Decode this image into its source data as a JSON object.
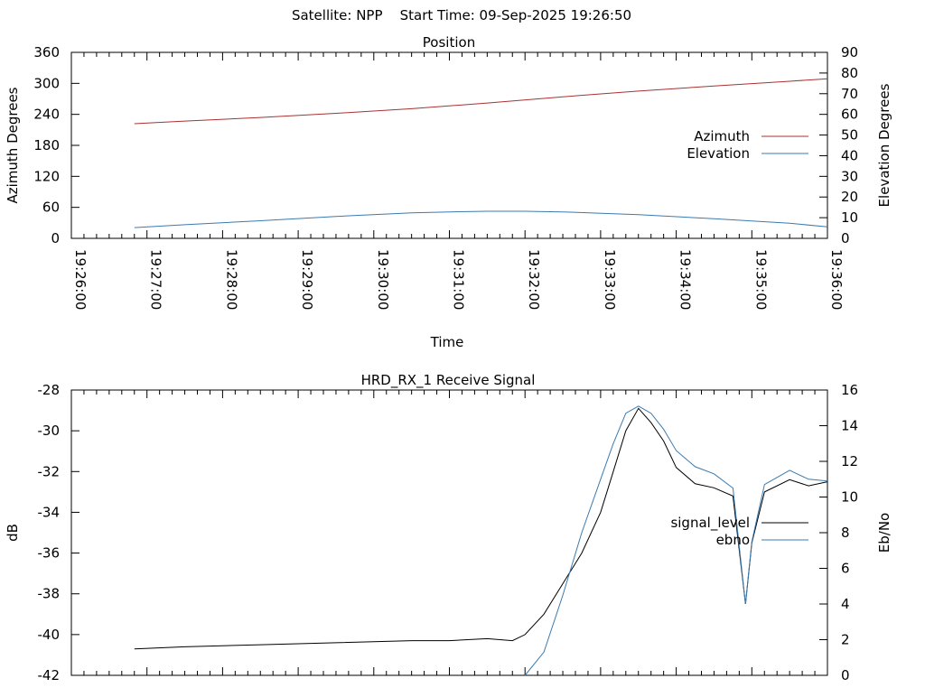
{
  "header": {
    "text": "Satellite: NPP    Start Time: 09-Sep-2025 19:26:50"
  },
  "chart_data": [
    {
      "type": "line",
      "title": "Position",
      "xlabel": "Time",
      "ylabel": "Azimuth Degrees",
      "y2label": "Elevation Degrees",
      "xlim": [
        "19:26:00",
        "19:36:00"
      ],
      "x_ticks": [
        "19:26:00",
        "19:27:00",
        "19:28:00",
        "19:29:00",
        "19:30:00",
        "19:31:00",
        "19:32:00",
        "19:33:00",
        "19:34:00",
        "19:35:00",
        "19:36:00"
      ],
      "ylim": [
        0,
        360
      ],
      "y_ticks": [
        0,
        60,
        120,
        180,
        240,
        300,
        360
      ],
      "y2lim": [
        0,
        90
      ],
      "y2_ticks": [
        0,
        10,
        20,
        30,
        40,
        50,
        60,
        70,
        80,
        90
      ],
      "legend_position": "right",
      "series": [
        {
          "name": "Azimuth",
          "axis": "y",
          "color": "#a83232",
          "x": [
            "19:26:50",
            "19:27:30",
            "19:28:30",
            "19:29:30",
            "19:30:30",
            "19:31:30",
            "19:32:30",
            "19:33:30",
            "19:34:30",
            "19:35:30",
            "19:36:00"
          ],
          "values": [
            222,
            227,
            234,
            242,
            251,
            262,
            274,
            285,
            295,
            304,
            309
          ]
        },
        {
          "name": "Elevation",
          "axis": "y2",
          "color": "#3a7ab0",
          "x": [
            "19:26:50",
            "19:27:30",
            "19:28:30",
            "19:29:30",
            "19:30:30",
            "19:31:00",
            "19:31:30",
            "19:32:00",
            "19:32:30",
            "19:33:30",
            "19:34:30",
            "19:35:30",
            "19:36:00"
          ],
          "values": [
            5.2,
            6.6,
            8.5,
            10.6,
            12.3,
            12.8,
            13.1,
            13.1,
            12.8,
            11.5,
            9.5,
            7.3,
            5.6
          ]
        }
      ]
    },
    {
      "type": "line",
      "title": "HRD_RX_1 Receive Signal",
      "xlabel": "",
      "ylabel": "dB",
      "y2label": "Eb/No",
      "xlim": [
        "19:26:00",
        "19:36:00"
      ],
      "ylim": [
        -42,
        -28
      ],
      "y_ticks": [
        -42,
        -40,
        -38,
        -36,
        -34,
        -32,
        -30,
        -28
      ],
      "y2lim": [
        0,
        16
      ],
      "y2_ticks": [
        0,
        2,
        4,
        6,
        8,
        10,
        12,
        14,
        16
      ],
      "legend_position": "right",
      "series": [
        {
          "name": "signal_level",
          "axis": "y",
          "color": "#000000",
          "x": [
            "19:26:50",
            "19:27:30",
            "19:28:30",
            "19:29:30",
            "19:30:30",
            "19:31:00",
            "19:31:30",
            "19:31:50",
            "19:32:00",
            "19:32:15",
            "19:32:30",
            "19:32:45",
            "19:33:00",
            "19:33:10",
            "19:33:20",
            "19:33:30",
            "19:33:40",
            "19:33:50",
            "19:34:00",
            "19:34:15",
            "19:34:30",
            "19:34:45",
            "19:34:55",
            "19:35:00",
            "19:35:10",
            "19:35:30",
            "19:35:45",
            "19:36:00"
          ],
          "values": [
            -40.7,
            -40.6,
            -40.5,
            -40.4,
            -40.3,
            -40.3,
            -40.2,
            -40.3,
            -40.0,
            -39.0,
            -37.5,
            -36.0,
            -34.0,
            -32.0,
            -30.0,
            -28.9,
            -29.6,
            -30.5,
            -31.8,
            -32.6,
            -32.8,
            -33.2,
            -38.5,
            -35.5,
            -33.0,
            -32.4,
            -32.7,
            -32.5
          ]
        },
        {
          "name": "ebno",
          "axis": "y2",
          "color": "#3a7ab0",
          "x": [
            "19:32:00",
            "19:32:15",
            "19:32:30",
            "19:32:45",
            "19:33:00",
            "19:33:10",
            "19:33:20",
            "19:33:30",
            "19:33:40",
            "19:33:50",
            "19:34:00",
            "19:34:15",
            "19:34:30",
            "19:34:45",
            "19:34:55",
            "19:35:00",
            "19:35:10",
            "19:35:30",
            "19:35:45",
            "19:36:00"
          ],
          "values": [
            0,
            1.3,
            4.5,
            8.0,
            11.0,
            13.0,
            14.7,
            15.1,
            14.7,
            13.8,
            12.6,
            11.7,
            11.3,
            10.5,
            4.0,
            7.5,
            10.7,
            11.5,
            11.0,
            10.9
          ]
        }
      ]
    }
  ]
}
